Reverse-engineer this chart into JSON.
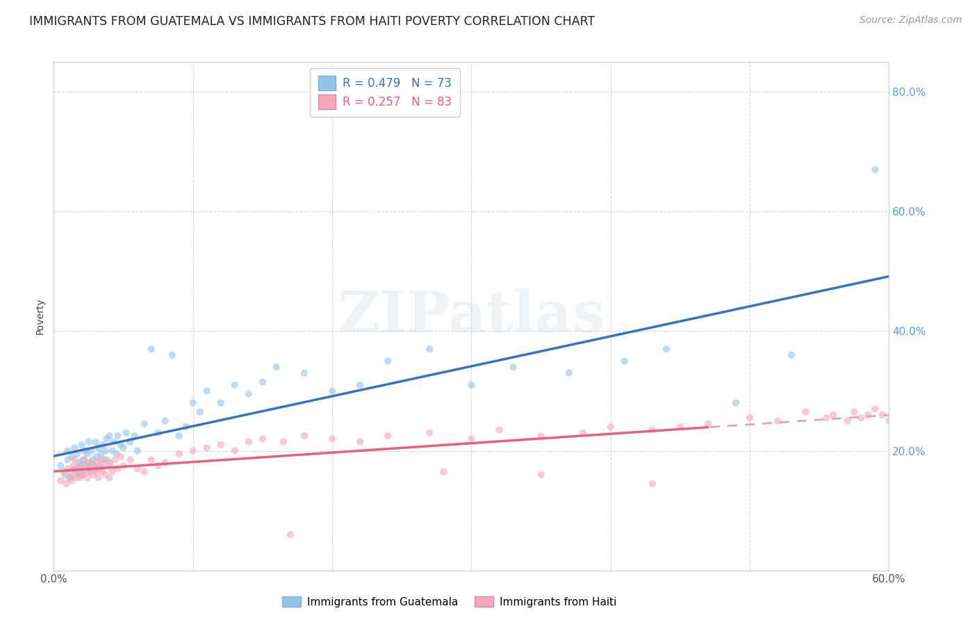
{
  "title": "IMMIGRANTS FROM GUATEMALA VS IMMIGRANTS FROM HAITI POVERTY CORRELATION CHART",
  "source": "Source: ZipAtlas.com",
  "ylabel": "Poverty",
  "xlim": [
    0.0,
    0.6
  ],
  "ylim": [
    0.0,
    0.85
  ],
  "xticks": [
    0.0,
    0.1,
    0.2,
    0.3,
    0.4,
    0.5,
    0.6
  ],
  "xtick_labels": [
    "0.0%",
    "",
    "",
    "",
    "",
    "",
    "60.0%"
  ],
  "yticks": [
    0.0,
    0.2,
    0.4,
    0.6,
    0.8
  ],
  "ytick_right_labels": [
    "",
    "20.0%",
    "40.0%",
    "60.0%",
    "80.0%"
  ],
  "guatemala_color": "#92C5E8",
  "haiti_color": "#F4A7B9",
  "guatemala_line_color": "#3472C8",
  "haiti_line_color": "#E8607A",
  "haiti_dashed_color": "#E8A0B0",
  "R_guatemala": 0.479,
  "N_guatemala": 73,
  "R_haiti": 0.257,
  "N_haiti": 83,
  "legend_label_guatemala": "Immigrants from Guatemala",
  "legend_label_haiti": "Immigrants from Haiti",
  "watermark": "ZIPatlas",
  "background_color": "#ffffff",
  "grid_color": "#cccccc",
  "title_fontsize": 12.5,
  "legend_fontsize": 12,
  "source_fontsize": 10,
  "scatter_alpha": 0.6,
  "scatter_size": 55,
  "haiti_dash_split": 0.47,
  "guatemala_x": [
    0.005,
    0.008,
    0.01,
    0.01,
    0.012,
    0.013,
    0.015,
    0.015,
    0.016,
    0.017,
    0.018,
    0.019,
    0.02,
    0.02,
    0.021,
    0.022,
    0.023,
    0.024,
    0.025,
    0.025,
    0.026,
    0.027,
    0.028,
    0.03,
    0.03,
    0.031,
    0.032,
    0.033,
    0.034,
    0.035,
    0.036,
    0.037,
    0.038,
    0.04,
    0.04,
    0.042,
    0.043,
    0.045,
    0.046,
    0.048,
    0.05,
    0.052,
    0.055,
    0.058,
    0.06,
    0.065,
    0.07,
    0.075,
    0.08,
    0.085,
    0.09,
    0.095,
    0.1,
    0.105,
    0.11,
    0.12,
    0.13,
    0.14,
    0.15,
    0.16,
    0.18,
    0.2,
    0.22,
    0.24,
    0.27,
    0.3,
    0.33,
    0.37,
    0.41,
    0.44,
    0.49,
    0.53,
    0.59
  ],
  "guatemala_y": [
    0.175,
    0.16,
    0.185,
    0.2,
    0.155,
    0.19,
    0.17,
    0.205,
    0.165,
    0.195,
    0.18,
    0.175,
    0.16,
    0.21,
    0.185,
    0.2,
    0.175,
    0.195,
    0.18,
    0.215,
    0.17,
    0.2,
    0.185,
    0.17,
    0.215,
    0.19,
    0.205,
    0.175,
    0.195,
    0.21,
    0.185,
    0.2,
    0.22,
    0.18,
    0.225,
    0.2,
    0.215,
    0.195,
    0.225,
    0.21,
    0.205,
    0.23,
    0.215,
    0.225,
    0.2,
    0.245,
    0.37,
    0.23,
    0.25,
    0.36,
    0.225,
    0.24,
    0.28,
    0.265,
    0.3,
    0.28,
    0.31,
    0.295,
    0.315,
    0.34,
    0.33,
    0.3,
    0.31,
    0.35,
    0.37,
    0.31,
    0.34,
    0.33,
    0.35,
    0.37,
    0.28,
    0.36,
    0.67
  ],
  "haiti_x": [
    0.005,
    0.007,
    0.009,
    0.01,
    0.011,
    0.012,
    0.013,
    0.014,
    0.015,
    0.015,
    0.016,
    0.017,
    0.018,
    0.019,
    0.02,
    0.021,
    0.022,
    0.023,
    0.024,
    0.025,
    0.026,
    0.027,
    0.028,
    0.029,
    0.03,
    0.031,
    0.032,
    0.033,
    0.034,
    0.035,
    0.036,
    0.037,
    0.038,
    0.04,
    0.041,
    0.042,
    0.044,
    0.046,
    0.048,
    0.05,
    0.055,
    0.06,
    0.065,
    0.07,
    0.075,
    0.08,
    0.09,
    0.1,
    0.11,
    0.12,
    0.13,
    0.14,
    0.15,
    0.165,
    0.18,
    0.2,
    0.22,
    0.24,
    0.27,
    0.3,
    0.32,
    0.35,
    0.38,
    0.4,
    0.43,
    0.45,
    0.47,
    0.5,
    0.52,
    0.54,
    0.555,
    0.56,
    0.57,
    0.575,
    0.58,
    0.585,
    0.59,
    0.595,
    0.6,
    0.43,
    0.35,
    0.28,
    0.17
  ],
  "haiti_y": [
    0.15,
    0.165,
    0.145,
    0.17,
    0.155,
    0.165,
    0.15,
    0.175,
    0.16,
    0.185,
    0.155,
    0.17,
    0.165,
    0.155,
    0.175,
    0.16,
    0.185,
    0.165,
    0.155,
    0.175,
    0.165,
    0.18,
    0.16,
    0.175,
    0.165,
    0.18,
    0.155,
    0.17,
    0.185,
    0.165,
    0.175,
    0.16,
    0.185,
    0.155,
    0.175,
    0.165,
    0.185,
    0.17,
    0.19,
    0.175,
    0.185,
    0.17,
    0.165,
    0.185,
    0.175,
    0.18,
    0.195,
    0.2,
    0.205,
    0.21,
    0.2,
    0.215,
    0.22,
    0.215,
    0.225,
    0.22,
    0.215,
    0.225,
    0.23,
    0.22,
    0.235,
    0.225,
    0.23,
    0.24,
    0.235,
    0.24,
    0.245,
    0.255,
    0.25,
    0.265,
    0.255,
    0.26,
    0.25,
    0.265,
    0.255,
    0.26,
    0.27,
    0.26,
    0.25,
    0.145,
    0.16,
    0.165,
    0.06
  ]
}
